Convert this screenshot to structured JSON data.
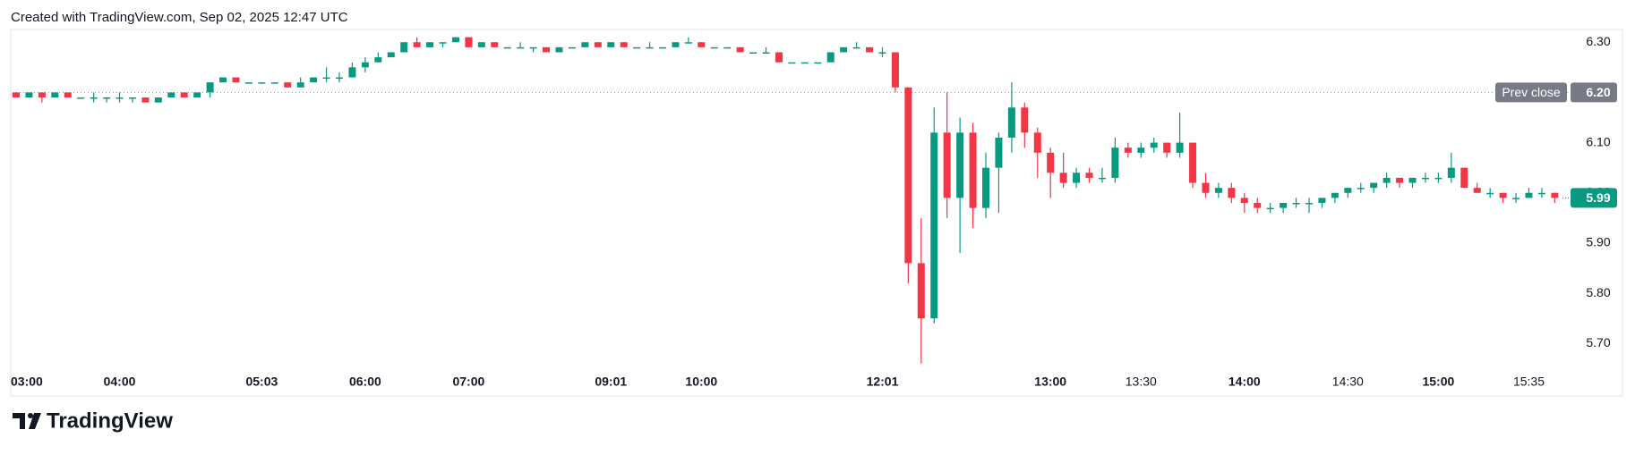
{
  "header": "Created with TradingView.com, Sep 02, 2025 12:47 UTC",
  "chart_data": {
    "type": "candlestick",
    "up_color": "#089981",
    "down_color": "#f23645",
    "open": [
      6.2,
      6.19,
      6.2,
      6.19,
      6.2,
      6.19,
      6.19,
      6.19,
      6.19,
      6.19,
      6.19,
      6.18,
      6.19,
      6.2,
      6.19,
      6.2,
      6.22,
      6.23,
      6.22,
      6.22,
      6.22,
      6.22,
      6.21,
      6.22,
      6.23,
      6.23,
      6.23,
      6.25,
      6.26,
      6.27,
      6.28,
      6.3,
      6.29,
      6.3,
      6.3,
      6.31,
      6.29,
      6.3,
      6.29,
      6.29,
      6.29,
      6.29,
      6.28,
      6.29,
      6.29,
      6.3,
      6.29,
      6.3,
      6.29,
      6.29,
      6.29,
      6.29,
      6.3,
      6.3,
      6.29,
      6.29,
      6.29,
      6.28,
      6.28,
      6.28,
      6.26,
      6.26,
      6.26,
      6.26,
      6.28,
      6.29,
      6.29,
      6.28,
      6.28,
      6.21,
      5.86,
      5.75,
      6.12,
      5.99,
      6.12,
      5.97,
      6.05,
      6.11,
      6.17,
      6.12,
      6.08,
      6.04,
      6.02,
      6.04,
      6.03,
      6.03,
      6.09,
      6.08,
      6.09,
      6.1,
      6.08,
      6.1,
      6.02,
      6.0,
      6.01,
      5.99,
      5.98,
      5.97,
      5.97,
      5.98,
      5.98,
      5.98,
      5.99,
      6.0,
      6.01,
      6.01,
      6.02,
      6.03,
      6.02,
      6.03,
      6.03,
      6.03,
      6.05,
      6.01,
      6.0,
      6.0,
      5.99,
      5.99,
      6.0,
      6.0
    ],
    "high": [
      6.2,
      6.2,
      6.2,
      6.2,
      6.2,
      6.19,
      6.2,
      6.19,
      6.2,
      6.19,
      6.19,
      6.19,
      6.2,
      6.2,
      6.2,
      6.22,
      6.23,
      6.23,
      6.22,
      6.22,
      6.22,
      6.22,
      6.23,
      6.23,
      6.25,
      6.24,
      6.26,
      6.27,
      6.28,
      6.28,
      6.3,
      6.31,
      6.3,
      6.3,
      6.31,
      6.31,
      6.3,
      6.3,
      6.29,
      6.3,
      6.29,
      6.29,
      6.29,
      6.29,
      6.3,
      6.3,
      6.3,
      6.3,
      6.29,
      6.3,
      6.29,
      6.3,
      6.31,
      6.3,
      6.29,
      6.29,
      6.29,
      6.28,
      6.29,
      6.28,
      6.26,
      6.26,
      6.26,
      6.28,
      6.29,
      6.3,
      6.29,
      6.29,
      6.28,
      6.21,
      5.95,
      6.17,
      6.2,
      6.15,
      6.14,
      6.08,
      6.12,
      6.22,
      6.18,
      6.13,
      6.09,
      6.08,
      6.05,
      6.05,
      6.05,
      6.11,
      6.1,
      6.1,
      6.11,
      6.1,
      6.16,
      6.1,
      6.04,
      6.02,
      6.02,
      6.0,
      5.99,
      5.98,
      5.98,
      5.99,
      5.99,
      5.99,
      6.0,
      6.01,
      6.02,
      6.02,
      6.04,
      6.03,
      6.03,
      6.04,
      6.04,
      6.08,
      6.05,
      6.02,
      6.01,
      6.0,
      6.0,
      6.01,
      6.01,
      6.0
    ],
    "low": [
      6.19,
      6.19,
      6.18,
      6.19,
      6.19,
      6.19,
      6.18,
      6.18,
      6.18,
      6.18,
      6.18,
      6.18,
      6.19,
      6.19,
      6.19,
      6.19,
      6.22,
      6.22,
      6.22,
      6.22,
      6.22,
      6.21,
      6.21,
      6.22,
      6.22,
      6.22,
      6.23,
      6.24,
      6.26,
      6.27,
      6.28,
      6.29,
      6.29,
      6.29,
      6.3,
      6.29,
      6.29,
      6.29,
      6.29,
      6.29,
      6.28,
      6.28,
      6.28,
      6.29,
      6.29,
      6.29,
      6.29,
      6.29,
      6.29,
      6.29,
      6.29,
      6.29,
      6.3,
      6.29,
      6.29,
      6.29,
      6.28,
      6.28,
      6.28,
      6.26,
      6.26,
      6.26,
      6.26,
      6.26,
      6.28,
      6.29,
      6.28,
      6.27,
      6.2,
      5.82,
      5.66,
      5.74,
      5.95,
      5.88,
      5.93,
      5.95,
      5.96,
      6.08,
      6.09,
      6.03,
      5.99,
      6.01,
      6.01,
      6.02,
      6.02,
      6.02,
      6.07,
      6.07,
      6.08,
      6.07,
      6.07,
      6.01,
      5.99,
      5.99,
      5.98,
      5.96,
      5.96,
      5.96,
      5.96,
      5.97,
      5.96,
      5.97,
      5.98,
      5.99,
      6.0,
      6.0,
      6.01,
      6.01,
      6.01,
      6.02,
      6.02,
      6.02,
      6.01,
      6.0,
      5.99,
      5.98,
      5.98,
      5.99,
      5.99,
      5.98
    ],
    "close": [
      6.19,
      6.2,
      6.19,
      6.2,
      6.19,
      6.19,
      6.19,
      6.19,
      6.19,
      6.19,
      6.18,
      6.19,
      6.2,
      6.19,
      6.2,
      6.22,
      6.23,
      6.22,
      6.22,
      6.22,
      6.22,
      6.21,
      6.22,
      6.23,
      6.23,
      6.23,
      6.25,
      6.26,
      6.27,
      6.28,
      6.3,
      6.29,
      6.3,
      6.3,
      6.31,
      6.29,
      6.3,
      6.29,
      6.29,
      6.29,
      6.29,
      6.28,
      6.29,
      6.29,
      6.3,
      6.29,
      6.3,
      6.29,
      6.29,
      6.29,
      6.29,
      6.3,
      6.3,
      6.29,
      6.29,
      6.29,
      6.28,
      6.28,
      6.28,
      6.26,
      6.26,
      6.26,
      6.26,
      6.28,
      6.29,
      6.29,
      6.28,
      6.28,
      6.21,
      5.86,
      5.75,
      6.12,
      5.99,
      6.12,
      5.97,
      6.05,
      6.11,
      6.17,
      6.12,
      6.08,
      6.04,
      6.02,
      6.04,
      6.03,
      6.03,
      6.09,
      6.08,
      6.09,
      6.1,
      6.08,
      6.1,
      6.02,
      6.0,
      6.01,
      5.99,
      5.98,
      5.97,
      5.97,
      5.98,
      5.98,
      5.98,
      5.99,
      6.0,
      6.01,
      6.01,
      6.02,
      6.03,
      6.02,
      6.03,
      6.03,
      6.03,
      6.05,
      6.01,
      6.0,
      6.0,
      5.99,
      5.99,
      6.0,
      6.0,
      5.99
    ],
    "ylim": [
      5.64,
      6.32
    ],
    "yticks": [
      {
        "value": 5.7,
        "label": "5.70"
      },
      {
        "value": 5.8,
        "label": "5.80"
      },
      {
        "value": 5.9,
        "label": "5.90"
      },
      {
        "value": 6.0,
        "label": "6.00"
      },
      {
        "value": 6.1,
        "label": "6.10"
      },
      {
        "value": 6.2,
        "label": "6.20"
      },
      {
        "value": 6.3,
        "label": "6.30"
      }
    ],
    "xticks": [
      {
        "value": 1,
        "label": "03:00",
        "bold": true
      },
      {
        "value": 8,
        "label": "04:00",
        "bold": true
      },
      {
        "value": 19,
        "label": "05:03",
        "bold": true
      },
      {
        "value": 27,
        "label": "06:00",
        "bold": true
      },
      {
        "value": 35,
        "label": "07:00",
        "bold": true
      },
      {
        "value": 46,
        "label": "09:01",
        "bold": true
      },
      {
        "value": 53,
        "label": "10:00",
        "bold": true
      },
      {
        "value": 67,
        "label": "12:01",
        "bold": true
      },
      {
        "value": 80,
        "label": "13:00",
        "bold": true
      },
      {
        "value": 87,
        "label": "13:30",
        "bold": false
      },
      {
        "value": 95,
        "label": "14:00",
        "bold": true
      },
      {
        "value": 103,
        "label": "14:30",
        "bold": false
      },
      {
        "value": 110,
        "label": "15:00",
        "bold": true
      },
      {
        "value": 117,
        "label": "15:35",
        "bold": false
      }
    ],
    "prev_close": {
      "name": "Prev close",
      "value": 6.2,
      "label": "6.20"
    },
    "last_price": 5.99
  },
  "footer": {
    "logo": "TradingView"
  }
}
